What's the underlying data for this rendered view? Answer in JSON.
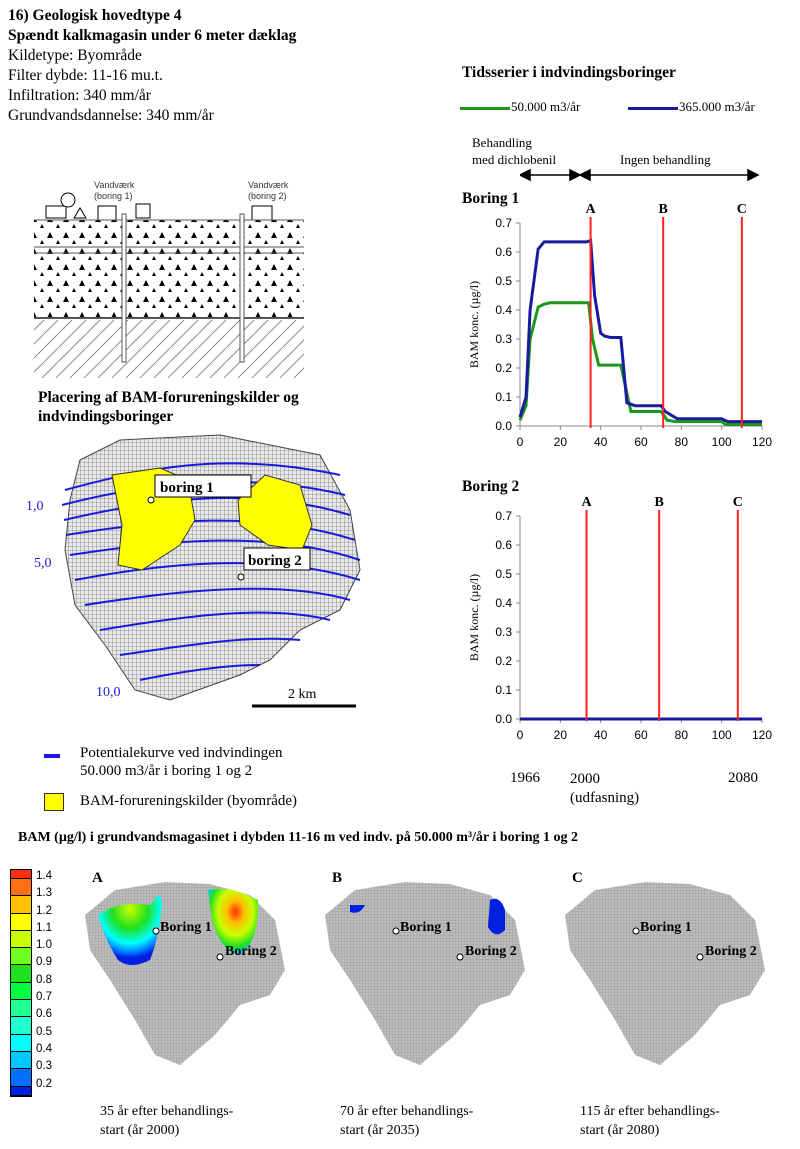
{
  "header": {
    "title": "16) Geologisk hovedtype 4",
    "subtitle": "Spændt kalkmagasin under 6 meter dæklag",
    "lines": [
      "Kildetype: Byområde",
      "Filter dybde: 11-16 mu.t.",
      "Infiltration: 340 mm/år",
      "Grundvandsdannelse: 340 mm/år"
    ]
  },
  "profile": {
    "labels": [
      "Vandværk (boring 1)",
      "Vandværk (boring 2)"
    ],
    "label_lines": [
      [
        "Vandværk",
        "(boring 1)"
      ],
      [
        "Vandværk",
        "(boring 2)"
      ]
    ]
  },
  "map_section": {
    "title": "Placering af BAM-forureningskilder og indvindingsboringer",
    "title_lines": [
      "Placering af BAM-forureningskilder og",
      "indvindingsboringer"
    ],
    "contour_labels": [
      "1,0",
      "5,0",
      "10,0"
    ],
    "boring_labels": [
      "boring 1",
      "boring 2"
    ],
    "scale_label": "2 km",
    "legend": [
      {
        "label_lines": [
          "Potentialekurve ved indvindingen",
          "50.000 m3/år i boring 1 og 2"
        ],
        "color": "#1a1adc"
      },
      {
        "label": "BAM-forureningskilder (byområde)",
        "color": "#ffff00"
      }
    ]
  },
  "timeseries": {
    "title": "Tidsserier i indvindingsboringer",
    "legend": [
      {
        "label": "50.000 m3/år",
        "color": "#1a9a1a"
      },
      {
        "label": "365.000 m3/år",
        "color": "#1a1aa0"
      }
    ],
    "phase_labels": {
      "treatment": [
        "Behandling",
        "med dichlobenil"
      ],
      "no_treatment": "Ingen behandling"
    },
    "years": {
      "y1966": "1966",
      "y2000": "2000",
      "y2000_note": "(udfasning)",
      "y2080": "2080"
    }
  },
  "chart_data": [
    {
      "type": "line",
      "title": "Boring 1",
      "ylabel": "BAM konc. (µg/l)",
      "xlabel": "",
      "xlim": [
        0,
        120
      ],
      "ylim": [
        0,
        0.7
      ],
      "xticks": [
        "0",
        "20",
        "40",
        "60",
        "80",
        "100",
        "120"
      ],
      "yticks": [
        "0.0",
        "0.1",
        "0.2",
        "0.3",
        "0.4",
        "0.5",
        "0.6",
        "0.7"
      ],
      "markers": [
        {
          "label": "A",
          "x": 35
        },
        {
          "label": "B",
          "x": 71
        },
        {
          "label": "C",
          "x": 110
        }
      ],
      "marker_color": "#ff2020",
      "series": [
        {
          "name": "50.000 m3/år",
          "color": "#1a9a1a",
          "x": [
            0,
            3,
            5,
            9,
            12,
            15,
            34,
            36,
            39,
            50,
            55,
            70,
            73,
            77,
            100,
            102,
            120
          ],
          "y": [
            0.02,
            0.07,
            0.3,
            0.41,
            0.42,
            0.425,
            0.425,
            0.3,
            0.21,
            0.21,
            0.05,
            0.05,
            0.02,
            0.015,
            0.015,
            0.005,
            0.005
          ]
        },
        {
          "name": "365.000 m3/år",
          "color": "#1a1aa0",
          "x": [
            0,
            3,
            5,
            9,
            12,
            33,
            35,
            37,
            40,
            42,
            45,
            50,
            53,
            57,
            70,
            72,
            78,
            100,
            103,
            120
          ],
          "y": [
            0.03,
            0.1,
            0.4,
            0.61,
            0.635,
            0.635,
            0.64,
            0.45,
            0.32,
            0.31,
            0.305,
            0.305,
            0.08,
            0.07,
            0.07,
            0.05,
            0.025,
            0.025,
            0.015,
            0.015
          ]
        }
      ]
    },
    {
      "type": "line",
      "title": "Boring 2",
      "ylabel": "BAM konc. (µg/l)",
      "xlabel": "",
      "xlim": [
        0,
        120
      ],
      "ylim": [
        0,
        0.7
      ],
      "xticks": [
        "0",
        "20",
        "40",
        "60",
        "80",
        "100",
        "120"
      ],
      "yticks": [
        "0.0",
        "0.1",
        "0.2",
        "0.3",
        "0.4",
        "0.5",
        "0.6",
        "0.7"
      ],
      "markers": [
        {
          "label": "A",
          "x": 33
        },
        {
          "label": "B",
          "x": 69
        },
        {
          "label": "C",
          "x": 108
        }
      ],
      "marker_color": "#ff2020",
      "series": [
        {
          "name": "50.000 m3/år",
          "color": "#1a9a1a",
          "x": [
            0,
            120
          ],
          "y": [
            0,
            0
          ]
        },
        {
          "name": "365.000 m3/år",
          "color": "#1a1aa0",
          "x": [
            0,
            120
          ],
          "y": [
            0,
            0
          ]
        }
      ]
    }
  ],
  "bottom": {
    "title": "BAM (µg/l) i grundvandsmagasinet i dybden 11-16 m ved indv. på 50.000 m³/år i boring 1 og 2",
    "scale": {
      "values": [
        "1.4",
        "1.3",
        "1.2",
        "1.1",
        "1.0",
        "0.9",
        "0.8",
        "0.7",
        "0.6",
        "0.5",
        "0.4",
        "0.3",
        "0.2"
      ],
      "colors": [
        "#ff3010",
        "#ff7010",
        "#ffc000",
        "#ffff00",
        "#c8ff00",
        "#70ff20",
        "#20e020",
        "#00ff40",
        "#20ff90",
        "#20ffd0",
        "#00ffff",
        "#00c8ff",
        "#0070ff",
        "#0020e0"
      ]
    },
    "panels": [
      {
        "letter": "A",
        "caption_lines": [
          "35 år efter behandlings-",
          "start (år 2000)"
        ],
        "boring_labels": [
          "Boring 1",
          "Boring 2"
        ]
      },
      {
        "letter": "B",
        "caption_lines": [
          "70 år efter behandlings-",
          "start (år 2035)"
        ],
        "boring_labels": [
          "Boring 1",
          "Boring 2"
        ]
      },
      {
        "letter": "C",
        "caption_lines": [
          "115 år efter behandlings-",
          "start (år 2080)"
        ],
        "boring_labels": [
          "Boring 1",
          "Boring 2"
        ]
      }
    ]
  }
}
